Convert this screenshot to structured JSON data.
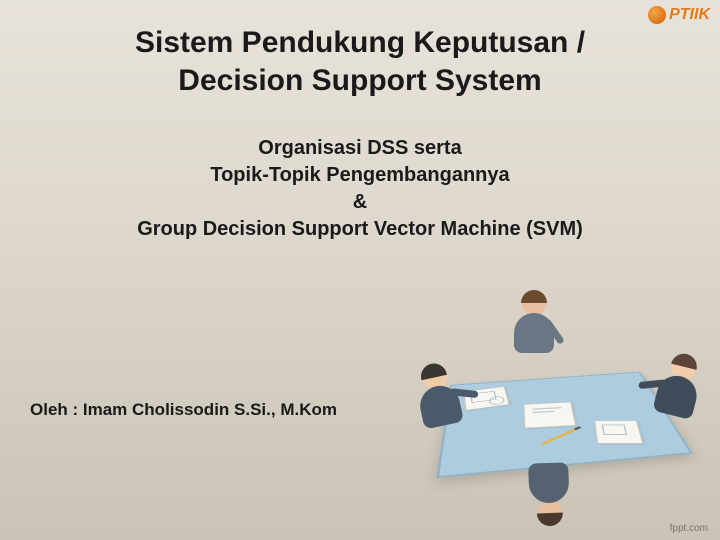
{
  "logo": {
    "text": "PTIIK"
  },
  "title": {
    "line1": "Sistem Pendukung Keputusan /",
    "line2": "Decision Support System"
  },
  "subtitle": {
    "line1": "Organisasi DSS serta",
    "line2": "Topik-Topik Pengembangannya",
    "line3": "&",
    "line4": "Group Decision Support Vector Machine (SVM)"
  },
  "author": "Oleh : Imam Cholissodin S.Si., M.Kom",
  "watermark": "fppt.com",
  "colors": {
    "text": "#1a1a1a",
    "logo": "#e07b1a",
    "watermark": "#7a756b",
    "bg_top": "#e8e3da",
    "bg_bottom": "#cac3b6",
    "table": "#aecce0"
  },
  "typography": {
    "title_fontsize": 30,
    "subtitle_fontsize": 20,
    "author_fontsize": 17,
    "font_family": "Arial"
  }
}
